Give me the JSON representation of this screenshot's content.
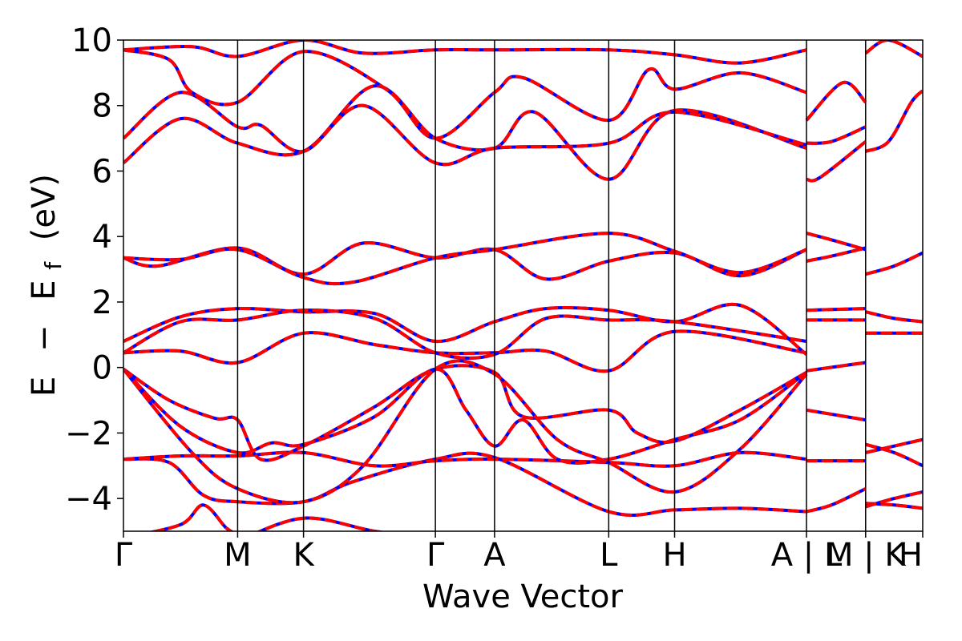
{
  "chart_data": {
    "type": "line",
    "xlabel": "Wave Vector",
    "ylabel_parts": [
      "E",
      "−",
      "E",
      "f",
      "(eV)"
    ],
    "ylim": [
      -5,
      10
    ],
    "yticks": [
      {
        "value": 10,
        "label": "10"
      },
      {
        "value": 8,
        "label": "8"
      },
      {
        "value": 6,
        "label": "6"
      },
      {
        "value": 4,
        "label": "4"
      },
      {
        "value": 2,
        "label": "2"
      },
      {
        "value": 0,
        "label": "0"
      },
      {
        "value": -2,
        "label": "−2"
      },
      {
        "value": -4,
        "label": "−4"
      }
    ],
    "kpoint_labels": [
      "Γ",
      "M",
      "K",
      "Γ",
      "A",
      "L",
      "H",
      "A | L",
      "M | K",
      "H"
    ],
    "kpath": [
      0,
      1.0,
      1.577,
      2.732,
      3.25,
      4.25,
      4.827,
      5.982,
      6.5,
      7.0
    ],
    "grid": false,
    "series": [
      {
        "color": "#0000ff",
        "dashed": false,
        "bands": [
          [
            [
              0,
              -5.2
            ],
            [
              0.5,
              -4.8
            ],
            [
              0.7,
              -4.2
            ],
            [
              0.9,
              -4.9
            ],
            [
              1.0,
              -5.1
            ]
          ],
          [
            [
              1.0,
              -5.3
            ],
            [
              1.577,
              -4.6
            ],
            [
              2.2,
              -5.0
            ],
            [
              2.732,
              -5.2
            ]
          ],
          [
            [
              0,
              -2.8
            ],
            [
              0.4,
              -2.9
            ],
            [
              0.7,
              -3.9
            ],
            [
              1.0,
              -4.1
            ],
            [
              1.577,
              -4.1
            ],
            [
              2.0,
              -3.5
            ],
            [
              2.732,
              -2.8
            ],
            [
              3.25,
              -2.75
            ],
            [
              4.25,
              -4.4
            ],
            [
              4.827,
              -4.35
            ],
            [
              5.4,
              -4.3
            ],
            [
              5.982,
              -4.4
            ]
          ],
          [
            [
              0,
              -2.8
            ],
            [
              0.5,
              -2.7
            ],
            [
              1.0,
              -2.7
            ],
            [
              1.577,
              -2.6
            ],
            [
              2.2,
              -3.0
            ],
            [
              2.732,
              -2.85
            ],
            [
              3.25,
              -2.8
            ],
            [
              4.25,
              -2.9
            ],
            [
              4.827,
              -3.0
            ],
            [
              5.4,
              -2.6
            ],
            [
              5.982,
              -2.8
            ]
          ],
          [
            [
              0,
              -0.05
            ],
            [
              0.4,
              -1.0
            ],
            [
              0.8,
              -1.55
            ],
            [
              1.0,
              -1.6
            ],
            [
              1.2,
              -2.8
            ],
            [
              1.577,
              -2.4
            ],
            [
              2.2,
              -1.2
            ],
            [
              2.732,
              -0.05
            ],
            [
              3.25,
              -0.15
            ],
            [
              3.5,
              -1.5
            ],
            [
              4.25,
              -1.3
            ],
            [
              4.5,
              -2.0
            ],
            [
              4.827,
              -2.25
            ],
            [
              5.4,
              -1.3
            ],
            [
              5.982,
              -0.15
            ]
          ],
          [
            [
              0,
              -0.05
            ],
            [
              0.5,
              -1.8
            ],
            [
              1.0,
              -2.6
            ],
            [
              1.3,
              -2.3
            ],
            [
              1.577,
              -2.35
            ],
            [
              2.2,
              -1.5
            ],
            [
              2.732,
              -0.05
            ],
            [
              3.0,
              -1.3
            ],
            [
              3.25,
              -2.4
            ],
            [
              3.5,
              -1.6
            ],
            [
              3.8,
              -2.8
            ],
            [
              4.25,
              -2.8
            ],
            [
              4.827,
              -2.2
            ],
            [
              5.4,
              -1.6
            ],
            [
              5.982,
              -0.15
            ]
          ],
          [
            [
              0,
              -0.05
            ],
            [
              0.6,
              -2.6
            ],
            [
              1.0,
              -3.7
            ],
            [
              1.577,
              -4.1
            ],
            [
              2.1,
              -3.0
            ],
            [
              2.732,
              -0.05
            ],
            [
              3.25,
              -0.2
            ],
            [
              3.8,
              -2.2
            ],
            [
              4.25,
              -2.9
            ],
            [
              4.827,
              -3.8
            ],
            [
              5.4,
              -2.5
            ],
            [
              5.982,
              -0.2
            ]
          ],
          [
            [
              0,
              0.45
            ],
            [
              0.5,
              0.5
            ],
            [
              1.0,
              0.15
            ],
            [
              1.577,
              1.05
            ],
            [
              2.2,
              0.7
            ],
            [
              2.732,
              0.45
            ],
            [
              3.25,
              0.45
            ],
            [
              3.7,
              0.5
            ],
            [
              4.25,
              -0.1
            ],
            [
              4.827,
              1.1
            ],
            [
              5.982,
              0.45
            ]
          ],
          [
            [
              0,
              0.8
            ],
            [
              0.5,
              1.55
            ],
            [
              1.0,
              1.8
            ],
            [
              1.577,
              1.7
            ],
            [
              2.2,
              1.65
            ],
            [
              2.732,
              0.8
            ],
            [
              3.25,
              1.4
            ],
            [
              3.7,
              1.8
            ],
            [
              4.25,
              1.75
            ],
            [
              4.827,
              1.4
            ],
            [
              5.4,
              1.9
            ],
            [
              5.982,
              0.4
            ]
          ],
          [
            [
              0,
              0.45
            ],
            [
              0.5,
              1.4
            ],
            [
              1.0,
              1.45
            ],
            [
              1.577,
              1.75
            ],
            [
              2.2,
              1.5
            ],
            [
              2.732,
              0.45
            ],
            [
              3.25,
              0.4
            ],
            [
              3.7,
              1.5
            ],
            [
              4.25,
              1.45
            ],
            [
              4.827,
              1.4
            ],
            [
              5.982,
              0.8
            ]
          ],
          [
            [
              0,
              3.35
            ],
            [
              0.3,
              3.1
            ],
            [
              1.0,
              3.65
            ],
            [
              1.577,
              2.85
            ],
            [
              2.1,
              3.8
            ],
            [
              2.732,
              3.35
            ],
            [
              3.25,
              3.6
            ],
            [
              3.7,
              2.7
            ],
            [
              4.25,
              3.25
            ],
            [
              4.827,
              3.5
            ],
            [
              5.4,
              2.8
            ],
            [
              5.982,
              3.6
            ]
          ],
          [
            [
              0,
              3.35
            ],
            [
              0.5,
              3.3
            ],
            [
              1.0,
              3.6
            ],
            [
              1.577,
              2.75
            ],
            [
              2.0,
              2.6
            ],
            [
              2.732,
              3.35
            ],
            [
              3.25,
              3.6
            ],
            [
              4.25,
              4.1
            ],
            [
              4.827,
              3.55
            ],
            [
              5.4,
              2.9
            ],
            [
              5.982,
              3.6
            ]
          ],
          [
            [
              0,
              6.25
            ],
            [
              0.5,
              7.6
            ],
            [
              1.0,
              6.85
            ],
            [
              1.577,
              6.6
            ],
            [
              2.2,
              8.6
            ],
            [
              2.732,
              7.0
            ],
            [
              3.25,
              6.7
            ],
            [
              3.6,
              7.8
            ],
            [
              4.25,
              5.75
            ],
            [
              4.827,
              7.85
            ],
            [
              5.982,
              6.7
            ]
          ],
          [
            [
              0,
              7.0
            ],
            [
              0.5,
              8.4
            ],
            [
              1.0,
              7.35
            ],
            [
              1.2,
              7.4
            ],
            [
              1.577,
              6.6
            ],
            [
              2.1,
              8.0
            ],
            [
              2.732,
              6.25
            ],
            [
              3.25,
              6.7
            ],
            [
              4.25,
              6.85
            ],
            [
              4.827,
              7.8
            ],
            [
              5.982,
              6.8
            ]
          ],
          [
            [
              0,
              9.7
            ],
            [
              0.4,
              9.4
            ],
            [
              0.6,
              8.4
            ],
            [
              1.0,
              8.1
            ],
            [
              1.577,
              9.65
            ],
            [
              2.3,
              8.5
            ],
            [
              2.732,
              7.0
            ],
            [
              3.25,
              8.4
            ],
            [
              3.5,
              8.85
            ],
            [
              4.25,
              7.55
            ],
            [
              4.6,
              9.1
            ],
            [
              4.827,
              8.5
            ],
            [
              5.4,
              9.0
            ],
            [
              5.982,
              8.4
            ]
          ],
          [
            [
              0,
              9.7
            ],
            [
              0.6,
              9.8
            ],
            [
              1.0,
              9.5
            ],
            [
              1.577,
              10.0
            ],
            [
              2.1,
              9.6
            ],
            [
              2.732,
              9.7
            ],
            [
              3.25,
              9.7
            ],
            [
              4.25,
              9.7
            ],
            [
              4.827,
              9.55
            ],
            [
              5.4,
              9.3
            ],
            [
              5.982,
              9.7
            ]
          ],
          [
            [
              5.982,
              7.55
            ],
            [
              6.3,
              8.7
            ],
            [
              6.5,
              8.1
            ]
          ],
          [
            [
              5.982,
              6.85
            ],
            [
              6.2,
              6.9
            ],
            [
              6.5,
              7.35
            ]
          ],
          [
            [
              5.982,
              5.75
            ],
            [
              6.1,
              5.8
            ],
            [
              6.5,
              6.9
            ]
          ],
          [
            [
              5.982,
              4.1
            ],
            [
              6.2,
              3.9
            ],
            [
              6.5,
              3.6
            ]
          ],
          [
            [
              5.982,
              3.25
            ],
            [
              6.2,
              3.4
            ],
            [
              6.5,
              3.65
            ]
          ],
          [
            [
              5.982,
              1.75
            ],
            [
              6.5,
              1.8
            ]
          ],
          [
            [
              5.982,
              1.45
            ],
            [
              6.5,
              1.45
            ]
          ],
          [
            [
              5.982,
              -0.1
            ],
            [
              6.5,
              0.15
            ]
          ],
          [
            [
              5.982,
              -1.3
            ],
            [
              6.5,
              -1.6
            ]
          ],
          [
            [
              5.982,
              -2.85
            ],
            [
              6.5,
              -2.85
            ]
          ],
          [
            [
              5.982,
              -4.4
            ],
            [
              6.2,
              -4.2
            ],
            [
              6.5,
              -3.7
            ]
          ],
          [
            [
              6.5,
              6.6
            ],
            [
              6.7,
              6.9
            ],
            [
              6.9,
              8.1
            ],
            [
              7.0,
              8.45
            ]
          ],
          [
            [
              6.5,
              2.85
            ],
            [
              6.75,
              3.1
            ],
            [
              7.0,
              3.5
            ]
          ],
          [
            [
              6.5,
              1.7
            ],
            [
              6.75,
              1.5
            ],
            [
              7.0,
              1.4
            ]
          ],
          [
            [
              6.5,
              1.05
            ],
            [
              7.0,
              1.05
            ]
          ],
          [
            [
              6.5,
              -2.35
            ],
            [
              6.75,
              -2.6
            ],
            [
              7.0,
              -3.0
            ]
          ],
          [
            [
              6.5,
              -2.6
            ],
            [
              6.75,
              -2.4
            ],
            [
              7.0,
              -2.2
            ]
          ],
          [
            [
              6.5,
              -4.15
            ],
            [
              6.75,
              -4.2
            ],
            [
              7.0,
              -4.3
            ]
          ],
          [
            [
              6.5,
              -4.25
            ],
            [
              6.75,
              -4.0
            ],
            [
              7.0,
              -3.8
            ]
          ],
          [
            [
              6.5,
              9.6
            ],
            [
              6.7,
              10.0
            ],
            [
              7.0,
              9.5
            ]
          ]
        ]
      },
      {
        "color": "#ff0000",
        "dashed": true,
        "bands_ref": "same as blue"
      }
    ]
  }
}
